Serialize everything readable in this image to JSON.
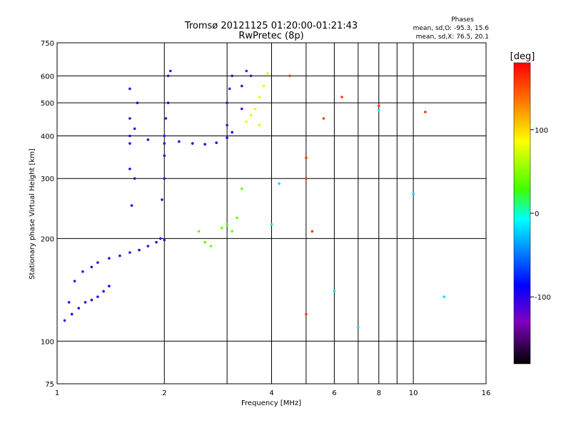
{
  "chart_data": {
    "type": "scatter",
    "title": "Tromsø 20121125 01:20:00-01:21:43",
    "subtitle": "RwPretec (8p)",
    "xlabel": "Frequency [MHz]",
    "ylabel": "Stationary phase Virtual Height [km]",
    "x_scale": "log",
    "y_scale": "log",
    "xlim": [
      1,
      16
    ],
    "ylim": [
      75,
      750
    ],
    "x_ticks": [
      1,
      2,
      4,
      6,
      8,
      10,
      16
    ],
    "x_minor_ticks": [
      3,
      5,
      7,
      9
    ],
    "y_ticks": [
      75,
      100,
      200,
      300,
      400,
      500,
      600,
      750
    ],
    "grid": true,
    "stats": {
      "heading": "Phases",
      "line_o": "mean, sd,O: -95.3, 15.6",
      "line_x": "mean, sd,X:  76.5, 20.1"
    },
    "colorbar": {
      "label": "[deg]",
      "range": [
        -180,
        180
      ],
      "ticks": [
        100,
        0,
        -100
      ]
    },
    "traces": [
      {
        "name": "",
        "phase": -110,
        "points": [
          [
            1.05,
            115
          ],
          [
            1.08,
            130
          ],
          [
            1.12,
            150
          ],
          [
            1.18,
            160
          ],
          [
            1.25,
            165
          ],
          [
            1.3,
            170
          ],
          [
            1.4,
            175
          ],
          [
            1.5,
            178
          ],
          [
            1.6,
            182
          ],
          [
            1.7,
            185
          ],
          [
            1.8,
            190
          ],
          [
            1.9,
            195
          ],
          [
            2.0,
            198
          ]
        ]
      },
      {
        "name": "",
        "phase": -100,
        "points": [
          [
            1.1,
            120
          ],
          [
            1.15,
            125
          ],
          [
            1.2,
            130
          ],
          [
            1.25,
            132
          ],
          [
            1.3,
            135
          ],
          [
            1.35,
            140
          ],
          [
            1.4,
            145
          ]
        ]
      },
      {
        "name": "",
        "phase": -105,
        "points": [
          [
            1.6,
            320
          ],
          [
            1.6,
            380
          ],
          [
            1.6,
            450
          ],
          [
            1.6,
            550
          ],
          [
            1.62,
            250
          ],
          [
            1.65,
            300
          ],
          [
            1.65,
            420
          ],
          [
            1.68,
            500
          ]
        ]
      },
      {
        "name": "",
        "phase": -110,
        "points": [
          [
            1.95,
            200
          ],
          [
            1.97,
            260
          ],
          [
            2.0,
            300
          ],
          [
            2.0,
            350
          ],
          [
            2.0,
            400
          ],
          [
            2.02,
            450
          ],
          [
            2.05,
            500
          ],
          [
            2.05,
            600
          ],
          [
            2.08,
            620
          ]
        ]
      },
      {
        "name": "",
        "phase": -100,
        "points": [
          [
            1.6,
            400
          ],
          [
            1.8,
            390
          ],
          [
            2.0,
            380
          ],
          [
            2.2,
            385
          ],
          [
            2.4,
            380
          ],
          [
            2.6,
            378
          ],
          [
            2.8,
            382
          ],
          [
            3.0,
            395
          ],
          [
            3.1,
            410
          ]
        ]
      },
      {
        "name": "",
        "phase": -115,
        "points": [
          [
            3.0,
            430
          ],
          [
            3.0,
            500
          ],
          [
            3.05,
            550
          ],
          [
            3.1,
            600
          ],
          [
            3.3,
            480
          ],
          [
            3.3,
            560
          ],
          [
            3.4,
            620
          ],
          [
            3.5,
            600
          ]
        ]
      },
      {
        "name": "",
        "phase": 40,
        "points": [
          [
            2.5,
            210
          ],
          [
            2.6,
            195
          ],
          [
            2.7,
            190
          ],
          [
            2.9,
            215
          ],
          [
            3.0,
            220
          ],
          [
            3.1,
            210
          ],
          [
            3.2,
            230
          ],
          [
            3.3,
            280
          ]
        ]
      },
      {
        "name": "",
        "phase": 75,
        "points": [
          [
            3.4,
            440
          ],
          [
            3.5,
            460
          ],
          [
            3.6,
            480
          ],
          [
            3.7,
            520
          ],
          [
            3.8,
            560
          ],
          [
            3.9,
            610
          ],
          [
            3.7,
            430
          ]
        ]
      },
      {
        "name": "",
        "phase": 155,
        "points": [
          [
            4.5,
            600
          ],
          [
            5.0,
            345
          ],
          [
            5.0,
            300
          ],
          [
            5.2,
            210
          ],
          [
            5.0,
            120
          ],
          [
            5.6,
            450
          ],
          [
            6.3,
            520
          ],
          [
            8.0,
            490
          ],
          [
            10.8,
            470
          ]
        ]
      },
      {
        "name": "",
        "phase": -20,
        "points": [
          [
            4.0,
            220
          ],
          [
            4.2,
            290
          ],
          [
            6.0,
            140
          ],
          [
            7.0,
            110
          ],
          [
            8.0,
            475
          ],
          [
            10.0,
            270
          ],
          [
            12.2,
            135
          ]
        ]
      }
    ]
  }
}
